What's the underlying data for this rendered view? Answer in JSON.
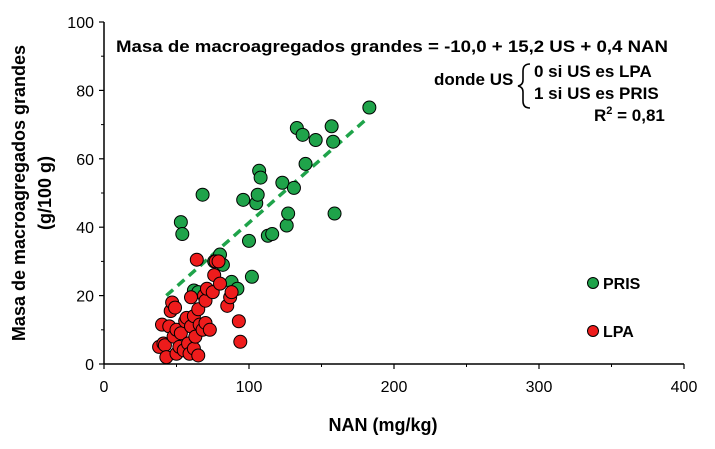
{
  "chart_data": {
    "type": "scatter",
    "xlabel": "NAN (mg/kg)",
    "ylabel_lines": [
      "Masa de macroagregados grandes",
      "(g/100 g)"
    ],
    "xlim": [
      0,
      400
    ],
    "ylim": [
      0,
      100
    ],
    "xticks": [
      0,
      100,
      200,
      300,
      400
    ],
    "yticks": [
      0,
      20,
      40,
      60,
      80,
      100
    ],
    "grid": false,
    "legend_position": "bottom-right",
    "annotation": {
      "equation": "Masa de macroagregados grandes = -10,0 + 15,2 US + 0,4 NAN",
      "donde": "donde US",
      "case1": "0 si US es LPA",
      "case2": "1 si US es PRIS",
      "r2_prefix": "R",
      "r2_sup": "2",
      "r2_value": " = 0,81"
    },
    "trendline": {
      "style": "dashed",
      "color": "#1fa34a",
      "x": [
        43,
        182
      ],
      "y": [
        20,
        72
      ]
    },
    "series": [
      {
        "name": "PRIS",
        "color": "#1fa34a",
        "x": [
          53,
          54,
          62,
          65,
          68,
          76,
          80,
          82,
          88,
          92,
          96,
          100,
          102,
          105,
          106,
          107,
          108,
          113,
          116,
          123,
          126,
          127,
          131,
          133,
          137,
          139,
          146,
          157,
          158,
          159,
          183
        ],
        "y": [
          41.5,
          38,
          21.5,
          21,
          49.5,
          30,
          32,
          29,
          24,
          22,
          48,
          36,
          25.5,
          47,
          49.5,
          56.5,
          54.5,
          37.5,
          38,
          53,
          40.5,
          44,
          51.5,
          69,
          67,
          58.5,
          65.5,
          69.5,
          65,
          44,
          75
        ]
      },
      {
        "name": "LPA",
        "color": "#ee1c1c",
        "x": [
          38,
          40,
          41,
          42,
          43,
          45,
          46,
          47,
          48,
          49,
          50,
          50,
          52,
          53,
          55,
          56,
          57,
          58,
          59,
          60,
          60,
          62,
          62,
          63,
          64,
          65,
          65,
          66,
          68,
          69,
          70,
          70,
          71,
          73,
          75,
          76,
          77,
          79,
          80,
          85,
          87,
          88,
          93,
          94
        ],
        "y": [
          5,
          11.5,
          6,
          5.5,
          2,
          11,
          15.5,
          18,
          8,
          16.5,
          3,
          10,
          5,
          9,
          4,
          12.5,
          13.5,
          6,
          3,
          11,
          19.5,
          4.5,
          14,
          8,
          30.5,
          16,
          2.5,
          11.5,
          10,
          20,
          18.5,
          12,
          22,
          10,
          21,
          26,
          30,
          30,
          23.5,
          17,
          19.5,
          21,
          12.5,
          6.5
        ]
      }
    ]
  }
}
